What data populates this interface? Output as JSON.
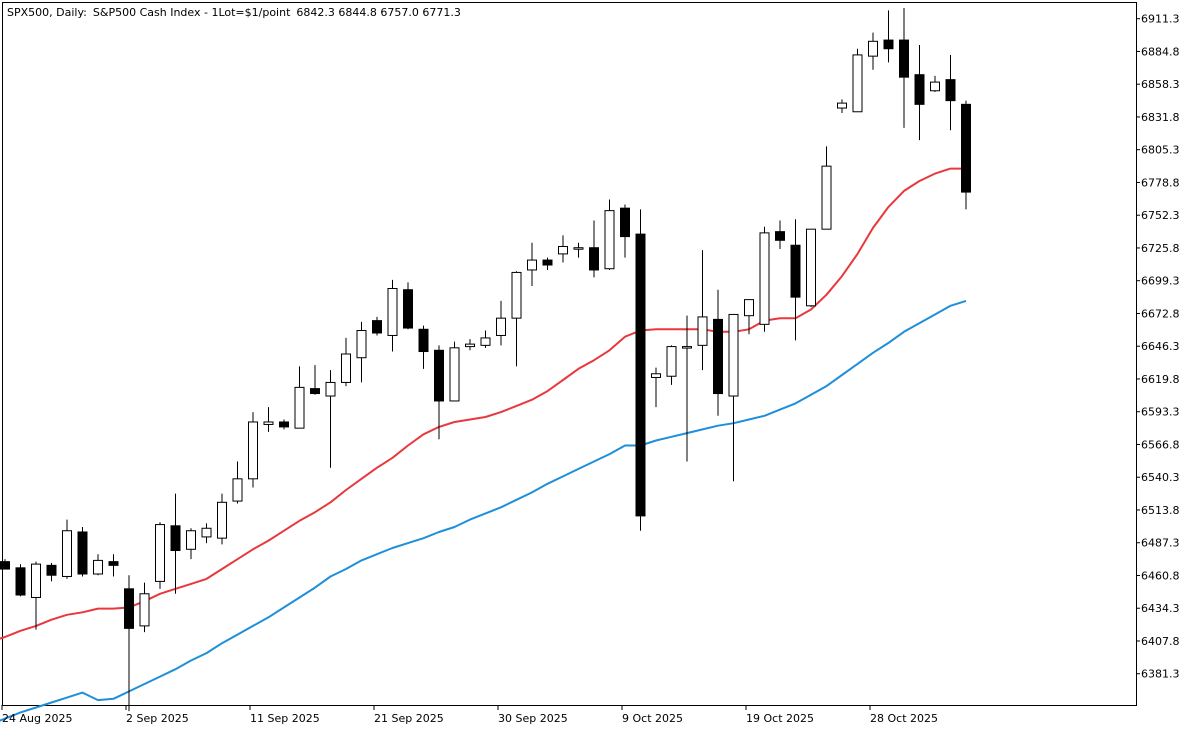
{
  "header": {
    "symbol": "SPX500, Daily:",
    "description": "S&P500 Cash Index - 1Lot=$1/point",
    "ohlc": "6842.3 6844.8 6757.0 6771.3"
  },
  "chart_data": {
    "type": "candlestick",
    "title": "SPX500, Daily:  S&P500 Cash Index - 1Lot=$1/point  6842.3 6844.8 6757.0 6771.3",
    "ylim": [
      6356,
      6924
    ],
    "grid": false,
    "y_ticks": [
      "6911.3",
      "6884.8",
      "6858.3",
      "6831.8",
      "6805.3",
      "6778.8",
      "6752.3",
      "6725.8",
      "6699.3",
      "6672.8",
      "6646.3",
      "6619.8",
      "6593.3",
      "6566.8",
      "6540.3",
      "6513.8",
      "6487.3",
      "6460.8",
      "6434.3",
      "6407.8",
      "6381.3"
    ],
    "x_labels": [
      {
        "index": 0,
        "label": "24 Aug 2025"
      },
      {
        "index": 8,
        "label": "2 Sep 2025"
      },
      {
        "index": 16,
        "label": "11 Sep 2025"
      },
      {
        "index": 24,
        "label": "21 Sep 2025"
      },
      {
        "index": 32,
        "label": "30 Sep 2025"
      },
      {
        "index": 40,
        "label": "9 Oct 2025"
      },
      {
        "index": 48,
        "label": "19 Oct 2025"
      },
      {
        "index": 56,
        "label": "28 Oct 2025"
      }
    ],
    "colors": {
      "up_fill": "#ffffff",
      "down_fill": "#000000",
      "outline": "#000000",
      "ma_fast": "#e8383d",
      "ma_slow": "#1e8fd8"
    },
    "candles": [
      {
        "o": 6472,
        "h": 6474,
        "l": 6466,
        "c": 6466
      },
      {
        "o": 6467,
        "h": 6470,
        "l": 6444,
        "c": 6445
      },
      {
        "o": 6443,
        "h": 6472,
        "l": 6417,
        "c": 6470
      },
      {
        "o": 6469,
        "h": 6471,
        "l": 6456,
        "c": 6461
      },
      {
        "o": 6460,
        "h": 6506,
        "l": 6458,
        "c": 6497
      },
      {
        "o": 6496,
        "h": 6500,
        "l": 6460,
        "c": 6462
      },
      {
        "o": 6462,
        "h": 6478,
        "l": 6461,
        "c": 6473
      },
      {
        "o": 6472,
        "h": 6478,
        "l": 6460,
        "c": 6469
      },
      {
        "o": 6450,
        "h": 6461,
        "l": 6351,
        "c": 6418
      },
      {
        "o": 6420,
        "h": 6455,
        "l": 6415,
        "c": 6446
      },
      {
        "o": 6456,
        "h": 6504,
        "l": 6450,
        "c": 6502
      },
      {
        "o": 6501,
        "h": 6527,
        "l": 6446,
        "c": 6481
      },
      {
        "o": 6482,
        "h": 6499,
        "l": 6474,
        "c": 6497
      },
      {
        "o": 6492,
        "h": 6503,
        "l": 6487,
        "c": 6499
      },
      {
        "o": 6491,
        "h": 6527,
        "l": 6486,
        "c": 6520
      },
      {
        "o": 6521,
        "h": 6553,
        "l": 6519,
        "c": 6539
      },
      {
        "o": 6539,
        "h": 6593,
        "l": 6532,
        "c": 6585
      },
      {
        "o": 6583,
        "h": 6597,
        "l": 6577,
        "c": 6585
      },
      {
        "o": 6585,
        "h": 6587,
        "l": 6579,
        "c": 6581
      },
      {
        "o": 6580,
        "h": 6630,
        "l": 6580,
        "c": 6613
      },
      {
        "o": 6612,
        "h": 6631,
        "l": 6607,
        "c": 6608
      },
      {
        "o": 6606,
        "h": 6627,
        "l": 6548,
        "c": 6617
      },
      {
        "o": 6617,
        "h": 6653,
        "l": 6614,
        "c": 6640
      },
      {
        "o": 6637,
        "h": 6666,
        "l": 6617,
        "c": 6659
      },
      {
        "o": 6667,
        "h": 6670,
        "l": 6655,
        "c": 6657
      },
      {
        "o": 6655,
        "h": 6700,
        "l": 6642,
        "c": 6693
      },
      {
        "o": 6692,
        "h": 6698,
        "l": 6660,
        "c": 6661
      },
      {
        "o": 6660,
        "h": 6663,
        "l": 6628,
        "c": 6642
      },
      {
        "o": 6643,
        "h": 6647,
        "l": 6571,
        "c": 6602
      },
      {
        "o": 6602,
        "h": 6650,
        "l": 6603,
        "c": 6645
      },
      {
        "o": 6646,
        "h": 6652,
        "l": 6643,
        "c": 6648
      },
      {
        "o": 6647,
        "h": 6659,
        "l": 6645,
        "c": 6653
      },
      {
        "o": 6655,
        "h": 6683,
        "l": 6647,
        "c": 6669
      },
      {
        "o": 6669,
        "h": 6707,
        "l": 6630,
        "c": 6706
      },
      {
        "o": 6708,
        "h": 6730,
        "l": 6695,
        "c": 6716
      },
      {
        "o": 6716,
        "h": 6718,
        "l": 6708,
        "c": 6712
      },
      {
        "o": 6721,
        "h": 6736,
        "l": 6714,
        "c": 6727
      },
      {
        "o": 6726,
        "h": 6730,
        "l": 6718,
        "c": 6726
      },
      {
        "o": 6726,
        "h": 6748,
        "l": 6702,
        "c": 6708
      },
      {
        "o": 6709,
        "h": 6765,
        "l": 6708,
        "c": 6756
      },
      {
        "o": 6758,
        "h": 6761,
        "l": 6718,
        "c": 6735
      },
      {
        "o": 6737,
        "h": 6757,
        "l": 6497,
        "c": 6509
      },
      {
        "o": 6621,
        "h": 6629,
        "l": 6597,
        "c": 6624
      },
      {
        "o": 6622,
        "h": 6647,
        "l": 6615,
        "c": 6646
      },
      {
        "o": 6645,
        "h": 6671,
        "l": 6553,
        "c": 6646
      },
      {
        "o": 6647,
        "h": 6724,
        "l": 6627,
        "c": 6670
      },
      {
        "o": 6668,
        "h": 6692,
        "l": 6590,
        "c": 6608
      },
      {
        "o": 6606,
        "h": 6672,
        "l": 6537,
        "c": 6672
      },
      {
        "o": 6671,
        "h": 6684,
        "l": 6656,
        "c": 6684
      },
      {
        "o": 6664,
        "h": 6743,
        "l": 6658,
        "c": 6738
      },
      {
        "o": 6739,
        "h": 6748,
        "l": 6725,
        "c": 6732
      },
      {
        "o": 6728,
        "h": 6749,
        "l": 6651,
        "c": 6686
      },
      {
        "o": 6679,
        "h": 6741,
        "l": 6678,
        "c": 6741
      },
      {
        "o": 6741,
        "h": 6808,
        "l": 6741,
        "c": 6792
      },
      {
        "o": 6839,
        "h": 6846,
        "l": 6835,
        "c": 6843
      },
      {
        "o": 6836,
        "h": 6887,
        "l": 6836,
        "c": 6882
      },
      {
        "o": 6881,
        "h": 6900,
        "l": 6870,
        "c": 6893
      },
      {
        "o": 6894,
        "h": 6918,
        "l": 6876,
        "c": 6887
      },
      {
        "o": 6894,
        "h": 6920,
        "l": 6823,
        "c": 6864
      },
      {
        "o": 6866,
        "h": 6890,
        "l": 6813,
        "c": 6842
      },
      {
        "o": 6853,
        "h": 6865,
        "l": 6852,
        "c": 6860
      },
      {
        "o": 6862,
        "h": 6882,
        "l": 6821,
        "c": 6845
      },
      {
        "o": 6842,
        "h": 6845,
        "l": 6757,
        "c": 6771
      }
    ],
    "series": [
      {
        "type": "line",
        "color": "#e8383d",
        "values": [
          6405,
          6407,
          6411,
          6416,
          6420,
          6425,
          6429,
          6431,
          6434,
          6434,
          6435,
          6440,
          6446,
          6450,
          6454,
          6458,
          6466,
          6474,
          6482,
          6489,
          6497,
          6505,
          6512,
          6520,
          6530,
          6539,
          6548,
          6556,
          6566,
          6575,
          6581,
          6585,
          6587,
          6589,
          6593,
          6598,
          6603,
          6610,
          6619,
          6628,
          6635,
          6643,
          6654,
          6659,
          6660,
          6660,
          6660,
          6660,
          6658,
          6658,
          6660,
          6667,
          6669,
          6669,
          6676,
          6688,
          6703,
          6721,
          6742,
          6759,
          6772,
          6780,
          6786,
          6790,
          6790
        ]
      },
      {
        "type": "line",
        "color": "#1e8fd8",
        "values": [
          6336,
          6340,
          6345,
          6350,
          6354,
          6358,
          6362,
          6366,
          6360,
          6361,
          6367,
          6373,
          6379,
          6385,
          6392,
          6398,
          6406,
          6413,
          6420,
          6427,
          6435,
          6443,
          6451,
          6460,
          6466,
          6473,
          6478,
          6483,
          6487,
          6491,
          6496,
          6500,
          6506,
          6511,
          6516,
          6522,
          6528,
          6535,
          6541,
          6547,
          6553,
          6559,
          6566,
          6566,
          6570,
          6573,
          6576,
          6579,
          6582,
          6584,
          6587,
          6590,
          6595,
          6600,
          6607,
          6614,
          6623,
          6632,
          6641,
          6649,
          6658,
          6665,
          6672,
          6679,
          6683
        ]
      }
    ]
  }
}
